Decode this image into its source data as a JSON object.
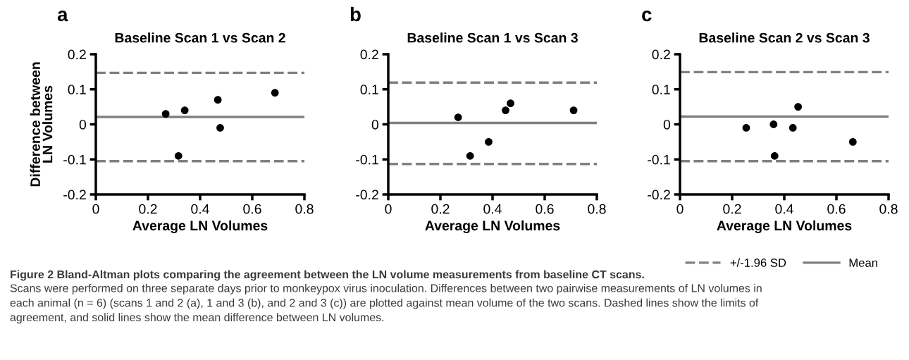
{
  "chart_data": [
    {
      "type": "scatter",
      "title": "Baseline Scan 1 vs Scan 2",
      "xlabel": "Average LN Volumes",
      "ylabel": "Difference between\nLN Volumes",
      "annotations": [
        "a",
        "Figure 2 Bland-Altman plots comparing the agreement between the LN volume measurements from baseline CT scans.",
        "Scans were performed on three separate days prior to monkeypox virus inoculation. Differences between two pairwise measurements of LN volumes in each animal (n = 6) (scans 1 and 2 (a), 1 and 3 (b), and 2 and 3 (c)) are plotted against mean volume of the two scans. Dashed lines show the limits of agreement, and solid lines show the mean difference between LN volumes."
      ],
      "x": [
        0.268,
        0.317,
        0.341,
        0.468,
        0.477,
        0.687
      ],
      "values": [
        0.03,
        -0.09,
        0.04,
        0.07,
        -0.01,
        0.09
      ],
      "color": "#000000",
      "marker": "circle",
      "xlim": [
        0,
        0.8
      ],
      "xticks": [
        0,
        0.2,
        0.4,
        0.6,
        0.8
      ],
      "ylim": [
        -0.2,
        0.2
      ],
      "yticks": [
        -0.2,
        -0.1,
        0,
        0.1,
        0.2
      ],
      "grid": false,
      "legend": false,
      "ref_lines": [
        {
          "axis": "y",
          "value": 0.147,
          "color": "#808080",
          "line_style": "dashed"
        },
        {
          "axis": "y",
          "value": -0.105,
          "color": "#808080",
          "line_style": "dashed"
        },
        {
          "axis": "y",
          "value": 0.021,
          "color": "#808080",
          "line_style": "solid"
        }
      ]
    },
    {
      "type": "scatter",
      "title": "Baseline Scan 1 vs Scan 3",
      "xlabel": "Average LN Volumes",
      "annotations": [
        "b"
      ],
      "x": [
        0.268,
        0.314,
        0.385,
        0.45,
        0.469,
        0.711
      ],
      "values": [
        0.02,
        -0.09,
        -0.05,
        0.04,
        0.06,
        0.04
      ],
      "color": "#000000",
      "marker": "circle",
      "xlim": [
        0,
        0.8
      ],
      "xticks": [
        0,
        0.2,
        0.4,
        0.6,
        0.8
      ],
      "ylim": [
        -0.2,
        0.2
      ],
      "yticks": [
        -0.2,
        -0.1,
        0,
        0.1,
        0.2
      ],
      "grid": false,
      "legend": false,
      "ref_lines": [
        {
          "axis": "y",
          "value": 0.119,
          "color": "#808080",
          "line_style": "dashed"
        },
        {
          "axis": "y",
          "value": -0.113,
          "color": "#808080",
          "line_style": "dashed"
        },
        {
          "axis": "y",
          "value": 0.004,
          "color": "#808080",
          "line_style": "solid"
        }
      ]
    },
    {
      "type": "scatter",
      "title": "Baseline Scan 2 vs Scan 3",
      "xlabel": "Average LN Volumes",
      "annotations": [
        "c"
      ],
      "x": [
        0.254,
        0.359,
        0.363,
        0.433,
        0.453,
        0.663
      ],
      "values": [
        -0.01,
        0,
        -0.09,
        -0.01,
        0.05,
        -0.05
      ],
      "color": "#000000",
      "marker": "circle",
      "xlim": [
        0,
        0.8
      ],
      "xticks": [
        0,
        0.2,
        0.4,
        0.6,
        0.8
      ],
      "ylim": [
        -0.2,
        0.2
      ],
      "yticks": [
        -0.2,
        -0.1,
        0,
        0.1,
        0.2
      ],
      "grid": false,
      "legend": "bottom right",
      "ref_lines": [
        {
          "axis": "y",
          "value": 0.149,
          "color": "#808080",
          "line_style": "dashed",
          "label": "+/-1.96 SD"
        },
        {
          "axis": "y",
          "value": -0.105,
          "color": "#808080",
          "line_style": "dashed"
        },
        {
          "axis": "y",
          "value": 0.022,
          "color": "#808080",
          "line_style": "solid",
          "label": "Mean"
        }
      ]
    }
  ]
}
